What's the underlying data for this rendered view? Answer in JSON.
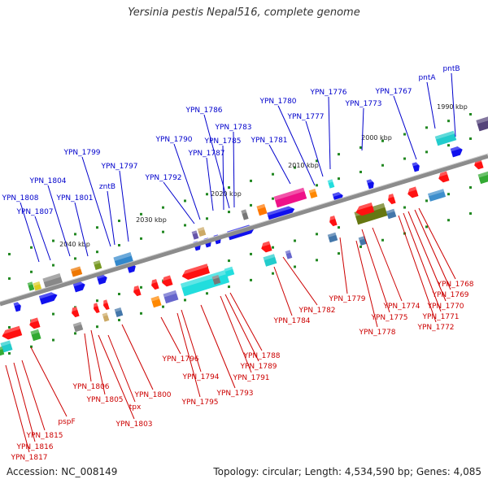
{
  "title": "Yersinia pestis Nepal516, complete genome",
  "footer": {
    "accession": "Accession: NC_008149",
    "stats": "Topology: circular; Length: 4,534,590 bp; Genes: 4,085"
  },
  "colors": {
    "backbone": "#8c8c8c",
    "forward_label": "#0000cc",
    "reverse_label": "#cc0000",
    "tick": "#228822"
  },
  "scale_ticks": [
    "1990 kbp",
    "2000 kbp",
    "2010 kbp",
    "2020 kbp",
    "2030 kbp",
    "2040 kbp"
  ],
  "forward_labels": [
    "pntB",
    "pntA",
    "YPN_1767",
    "YPN_1773",
    "YPN_1776",
    "YPN_1780",
    "YPN_1777",
    "YPN_1781",
    "YPN_1786",
    "YPN_1783",
    "YPN_1785",
    "YPN_1787",
    "YPN_1790",
    "YPN_1792",
    "YPN_1799",
    "YPN_1797",
    "zntB",
    "YPN_1804",
    "YPN_1801",
    "YPN_1808",
    "YPN_1807"
  ],
  "reverse_labels": [
    "YPN_1768",
    "YPN_1769",
    "YPN_1770",
    "YPN_1771",
    "YPN_1772",
    "YPN_1774",
    "YPN_1775",
    "YPN_1779",
    "YPN_1778",
    "YPN_1782",
    "YPN_1784",
    "YPN_1788",
    "YPN_1789",
    "YPN_1791",
    "YPN_1793",
    "YPN_1794",
    "YPN_1795",
    "YPN_1796",
    "YPN_1800",
    "YPN_1806",
    "YPN_1805",
    "tpx",
    "YPN_1803",
    "pspF",
    "YPN_1815",
    "YPN_1816",
    "YPN_1817"
  ]
}
